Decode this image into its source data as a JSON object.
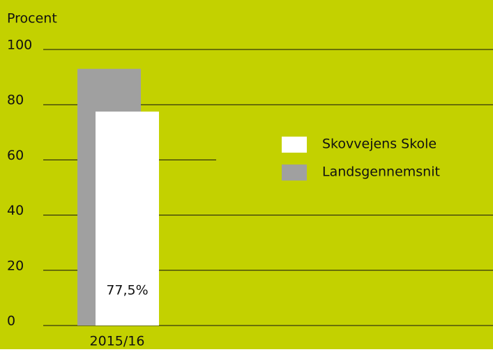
{
  "chart_data": {
    "type": "bar",
    "y_label": "Procent",
    "categories": [
      "2015/16"
    ],
    "series": [
      {
        "name": "Landsgennemsnit",
        "color": "#a0a0a0",
        "values": [
          93
        ]
      },
      {
        "name": "Skovvejens Skole",
        "color": "#ffffff",
        "values": [
          77.5
        ],
        "value_labels": [
          "77,5%"
        ]
      }
    ],
    "ylim": [
      0,
      100
    ],
    "yticks": [
      0,
      20,
      40,
      60,
      80,
      100
    ],
    "grid": true,
    "legend": "right",
    "background": "#c3d100"
  }
}
